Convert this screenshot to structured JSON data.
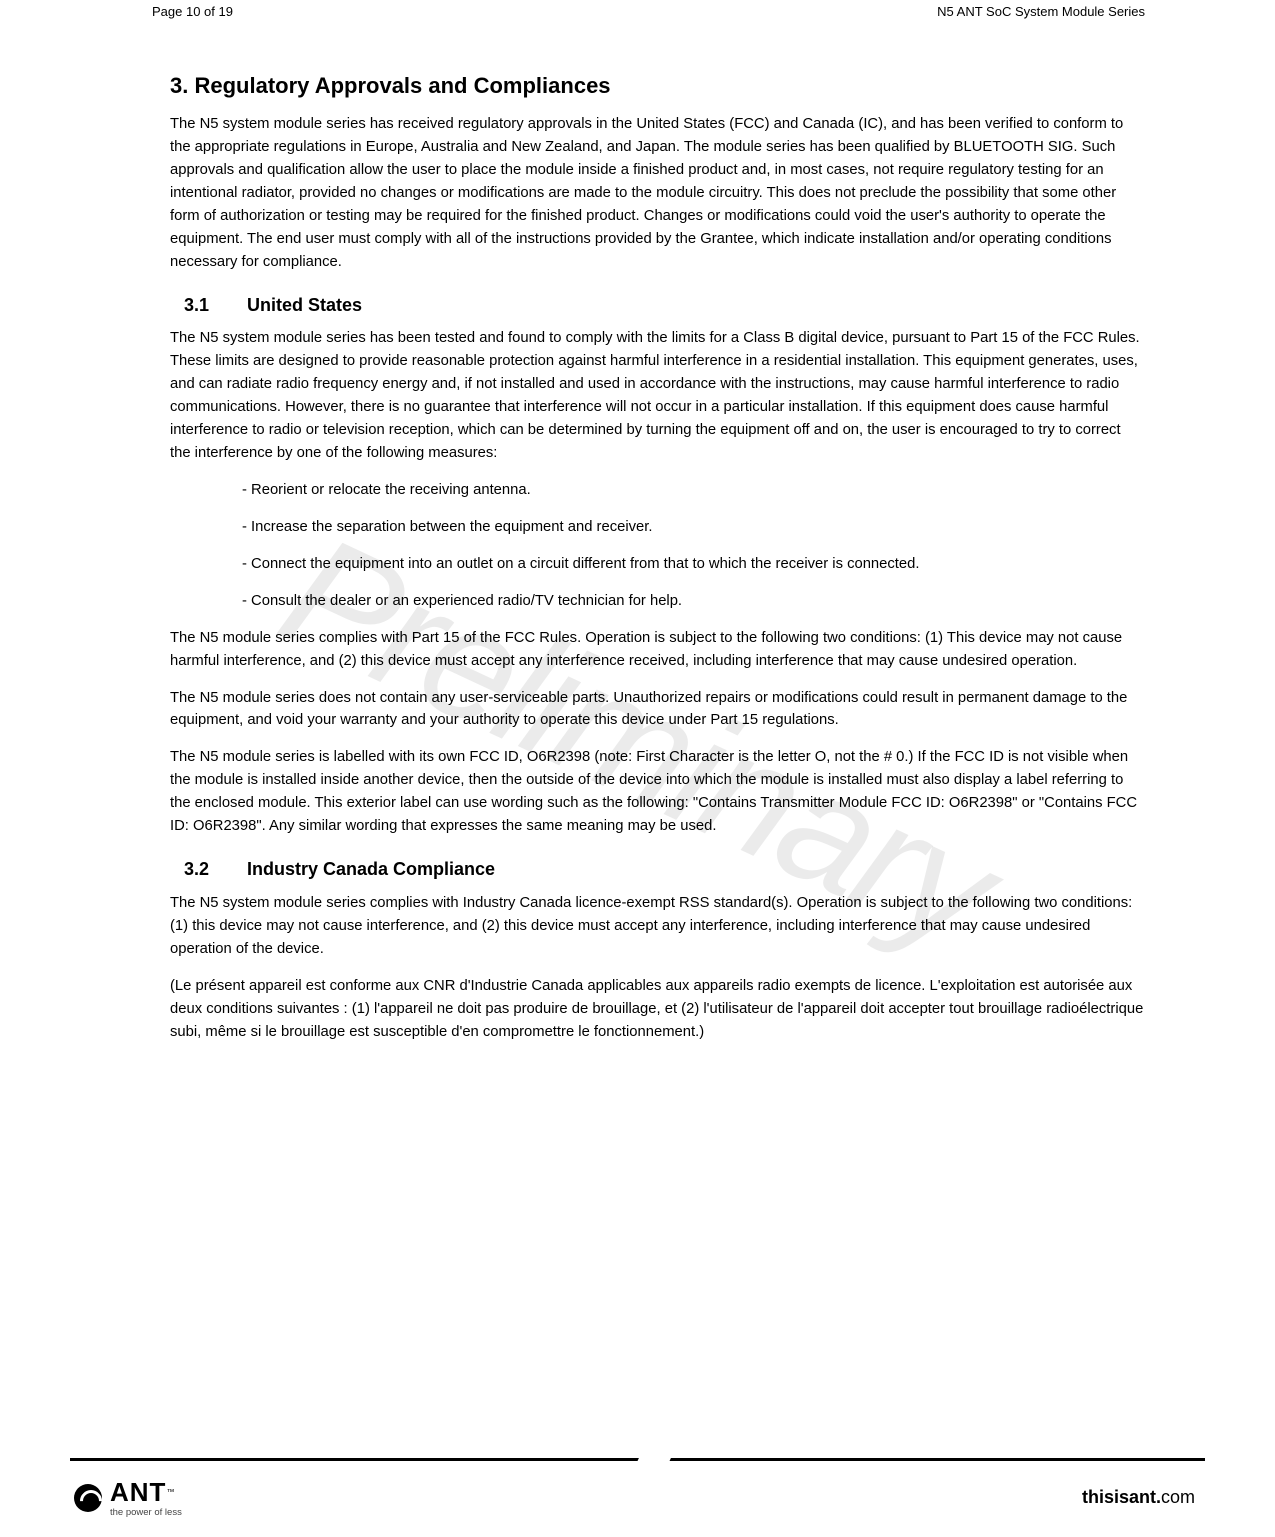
{
  "header": {
    "page_label": "Page 10 of 19",
    "doc_title": "N5 ANT SoC System Module Series"
  },
  "watermark": "Preliminary",
  "section": {
    "number": "3.",
    "title": "Regulatory Approvals and Compliances",
    "intro": "The N5 system module series has received regulatory approvals in the United States (FCC) and Canada (IC), and has been verified to conform to the appropriate regulations in Europe, Australia and New Zealand, and Japan. The module series has been qualified by BLUETOOTH SIG. Such approvals and qualification allow the user to place the module inside a finished product and, in most cases, not require regulatory testing for an intentional radiator, provided no changes or modifications are made to the module circuitry. This does not preclude the possibility that some other form of authorization or testing may be required for the finished product. Changes or modifications could void the user's authority to operate the equipment. The end user must comply with all of the instructions provided by the Grantee, which indicate installation and/or operating conditions necessary for compliance."
  },
  "sub1": {
    "number": "3.1",
    "title": "United States",
    "p1": "The N5 system module series has been tested and found to comply with the limits for a Class B digital device, pursuant to Part 15 of the FCC Rules.  These limits are designed to provide reasonable protection against harmful interference in a residential installation.  This equipment generates, uses, and can radiate radio frequency energy and, if not installed and used in accordance with the instructions, may cause harmful interference to radio communications.  However, there is no guarantee that interference will not occur in a particular installation.  If this equipment does cause harmful interference to radio or television reception, which can be determined by turning the equipment off and on, the user is encouraged to try to correct the interference by one of the following measures:",
    "measures": [
      "- Reorient or relocate the receiving antenna.",
      "- Increase the separation between the equipment and receiver.",
      "- Connect the equipment into an outlet on a circuit different from that to which the receiver is connected.",
      "- Consult the dealer or an experienced radio/TV technician for help."
    ],
    "p2": "The N5 module series complies with Part 15 of the FCC Rules.  Operation is subject to the following two conditions: (1) This device may not cause harmful interference, and (2) this device must accept any interference received, including interference that may cause undesired operation.",
    "p3": "The N5 module series does not contain any user-serviceable parts. Unauthorized repairs or modifications could result in permanent damage to the equipment, and void your warranty and your authority to operate this device under Part 15 regulations.",
    "p4": "The N5 module series is labelled with its own FCC ID, O6R2398 (note: First Character is the letter O, not the # 0.) If the FCC ID is not visible when the module is installed inside another device, then the outside of the device into which the module is installed must also display a label referring to the enclosed module. This exterior label can use wording such as the following: \"Contains Transmitter Module FCC ID: O6R2398\" or \"Contains FCC ID: O6R2398\". Any similar wording that expresses the same meaning may be used."
  },
  "sub2": {
    "number": "3.2",
    "title": "Industry Canada Compliance",
    "p1": "The N5 system module series complies with Industry Canada licence-exempt RSS standard(s).  Operation is subject to the following two conditions: (1) this device may not cause interference, and (2) this device must accept any interference, including interference that may cause undesired operation of the device.",
    "p2": "(Le présent appareil est conforme aux CNR d'Industrie Canada applicables aux appareils radio exempts de licence. L'exploitation est autorisée aux deux conditions suivantes : (1) l'appareil ne doit pas produire de brouillage, et (2) l'utilisateur de l'appareil doit accepter tout brouillage radioélectrique subi, même si le brouillage est susceptible d'en compromettre le fonctionnement.)"
  },
  "footer": {
    "brand": "ANT",
    "tagline": "the power of less",
    "site_bold": "thisisant.",
    "site_rest": "com"
  }
}
